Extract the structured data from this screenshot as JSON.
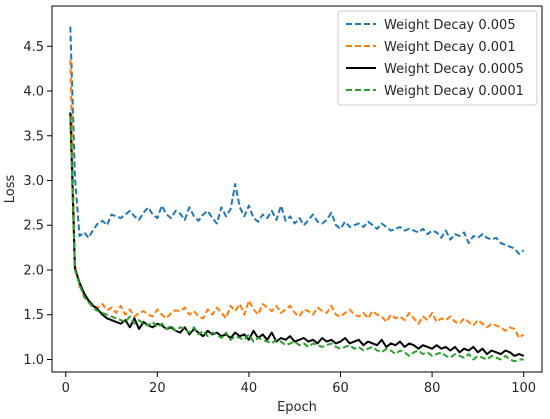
{
  "chart_data": {
    "type": "line",
    "xlabel": "Epoch",
    "ylabel": "Loss",
    "xlim": [
      -3,
      104
    ],
    "ylim": [
      0.86,
      4.95
    ],
    "xticks": [
      0,
      20,
      40,
      60,
      80,
      100
    ],
    "yticks": [
      1.0,
      1.5,
      2.0,
      2.5,
      3.0,
      3.5,
      4.0,
      4.5
    ],
    "legend_position": "top-right",
    "x": [
      1,
      2,
      3,
      4,
      5,
      6,
      7,
      8,
      9,
      10,
      11,
      12,
      13,
      14,
      15,
      16,
      17,
      18,
      19,
      20,
      21,
      22,
      23,
      24,
      25,
      26,
      27,
      28,
      29,
      30,
      31,
      32,
      33,
      34,
      35,
      36,
      37,
      38,
      39,
      40,
      41,
      42,
      43,
      44,
      45,
      46,
      47,
      48,
      49,
      50,
      51,
      52,
      53,
      54,
      55,
      56,
      57,
      58,
      59,
      60,
      61,
      62,
      63,
      64,
      65,
      66,
      67,
      68,
      69,
      70,
      71,
      72,
      73,
      74,
      75,
      76,
      77,
      78,
      79,
      80,
      81,
      82,
      83,
      84,
      85,
      86,
      87,
      88,
      89,
      90,
      91,
      92,
      93,
      94,
      95,
      96,
      97,
      98,
      99,
      100
    ],
    "series": [
      {
        "name": "Weight Decay 0.005",
        "color": "#1f77b4",
        "dash": "dashed",
        "values": [
          4.72,
          3.05,
          2.38,
          2.42,
          2.36,
          2.45,
          2.52,
          2.55,
          2.5,
          2.62,
          2.6,
          2.58,
          2.62,
          2.66,
          2.6,
          2.56,
          2.64,
          2.7,
          2.62,
          2.58,
          2.72,
          2.62,
          2.58,
          2.66,
          2.63,
          2.56,
          2.7,
          2.6,
          2.55,
          2.62,
          2.66,
          2.58,
          2.52,
          2.7,
          2.6,
          2.68,
          2.96,
          2.7,
          2.6,
          2.72,
          2.58,
          2.54,
          2.62,
          2.58,
          2.66,
          2.56,
          2.72,
          2.55,
          2.6,
          2.52,
          2.58,
          2.5,
          2.56,
          2.62,
          2.54,
          2.52,
          2.56,
          2.64,
          2.5,
          2.46,
          2.54,
          2.48,
          2.5,
          2.52,
          2.48,
          2.54,
          2.5,
          2.46,
          2.52,
          2.48,
          2.44,
          2.46,
          2.48,
          2.44,
          2.46,
          2.44,
          2.42,
          2.46,
          2.4,
          2.44,
          2.42,
          2.36,
          2.44,
          2.34,
          2.4,
          2.38,
          2.42,
          2.3,
          2.38,
          2.36,
          2.4,
          2.36,
          2.34,
          2.36,
          2.3,
          2.28,
          2.26,
          2.24,
          2.18,
          2.22
        ]
      },
      {
        "name": "Weight Decay 0.001",
        "color": "#ff7f0e",
        "dash": "dashed",
        "values": [
          4.35,
          2.05,
          1.82,
          1.72,
          1.64,
          1.6,
          1.58,
          1.62,
          1.55,
          1.58,
          1.52,
          1.6,
          1.5,
          1.56,
          1.48,
          1.52,
          1.54,
          1.5,
          1.48,
          1.56,
          1.5,
          1.46,
          1.52,
          1.55,
          1.54,
          1.58,
          1.5,
          1.54,
          1.48,
          1.46,
          1.56,
          1.5,
          1.58,
          1.52,
          1.46,
          1.6,
          1.54,
          1.62,
          1.5,
          1.66,
          1.56,
          1.5,
          1.62,
          1.58,
          1.54,
          1.6,
          1.52,
          1.56,
          1.6,
          1.52,
          1.48,
          1.56,
          1.54,
          1.5,
          1.58,
          1.54,
          1.52,
          1.6,
          1.5,
          1.48,
          1.52,
          1.56,
          1.5,
          1.48,
          1.52,
          1.46,
          1.54,
          1.5,
          1.48,
          1.42,
          1.5,
          1.46,
          1.48,
          1.44,
          1.52,
          1.46,
          1.4,
          1.48,
          1.44,
          1.52,
          1.42,
          1.46,
          1.44,
          1.48,
          1.42,
          1.4,
          1.46,
          1.42,
          1.38,
          1.44,
          1.4,
          1.36,
          1.4,
          1.38,
          1.36,
          1.32,
          1.36,
          1.34,
          1.24,
          1.28
        ]
      },
      {
        "name": "Weight Decay 0.0005",
        "color": "#000000",
        "dash": "solid",
        "values": [
          3.76,
          2.02,
          1.86,
          1.74,
          1.66,
          1.6,
          1.56,
          1.5,
          1.46,
          1.44,
          1.42,
          1.4,
          1.44,
          1.36,
          1.46,
          1.34,
          1.42,
          1.38,
          1.36,
          1.4,
          1.38,
          1.34,
          1.36,
          1.32,
          1.3,
          1.36,
          1.28,
          1.34,
          1.3,
          1.26,
          1.32,
          1.28,
          1.3,
          1.26,
          1.28,
          1.24,
          1.3,
          1.26,
          1.28,
          1.22,
          1.32,
          1.24,
          1.28,
          1.22,
          1.3,
          1.2,
          1.24,
          1.22,
          1.26,
          1.2,
          1.22,
          1.24,
          1.2,
          1.22,
          1.18,
          1.24,
          1.2,
          1.22,
          1.18,
          1.2,
          1.24,
          1.18,
          1.2,
          1.22,
          1.16,
          1.2,
          1.18,
          1.16,
          1.22,
          1.14,
          1.18,
          1.16,
          1.2,
          1.14,
          1.18,
          1.16,
          1.12,
          1.16,
          1.14,
          1.12,
          1.16,
          1.12,
          1.14,
          1.1,
          1.14,
          1.08,
          1.12,
          1.1,
          1.14,
          1.08,
          1.12,
          1.06,
          1.1,
          1.08,
          1.06,
          1.1,
          1.08,
          1.04,
          1.06,
          1.04
        ]
      },
      {
        "name": "Weight Decay 0.0001",
        "color": "#2ca02c",
        "dash": "dashed",
        "values": [
          3.72,
          2.0,
          1.84,
          1.7,
          1.64,
          1.58,
          1.54,
          1.52,
          1.5,
          1.48,
          1.46,
          1.44,
          1.42,
          1.48,
          1.4,
          1.44,
          1.4,
          1.38,
          1.42,
          1.36,
          1.4,
          1.34,
          1.38,
          1.32,
          1.36,
          1.34,
          1.3,
          1.36,
          1.28,
          1.32,
          1.26,
          1.3,
          1.28,
          1.24,
          1.3,
          1.22,
          1.26,
          1.24,
          1.22,
          1.28,
          1.2,
          1.24,
          1.22,
          1.2,
          1.18,
          1.22,
          1.2,
          1.16,
          1.18,
          1.2,
          1.16,
          1.18,
          1.14,
          1.18,
          1.16,
          1.14,
          1.16,
          1.18,
          1.14,
          1.12,
          1.14,
          1.16,
          1.12,
          1.14,
          1.1,
          1.12,
          1.14,
          1.1,
          1.08,
          1.12,
          1.1,
          1.06,
          1.1,
          1.08,
          1.04,
          1.08,
          1.1,
          1.06,
          1.08,
          1.04,
          1.06,
          1.08,
          1.04,
          1.02,
          1.06,
          1.04,
          1.02,
          1.06,
          1.0,
          1.04,
          1.02,
          1.0,
          1.04,
          1.02,
          1.0,
          1.04,
          1.0,
          0.98,
          1.0,
          1.0
        ]
      }
    ]
  }
}
